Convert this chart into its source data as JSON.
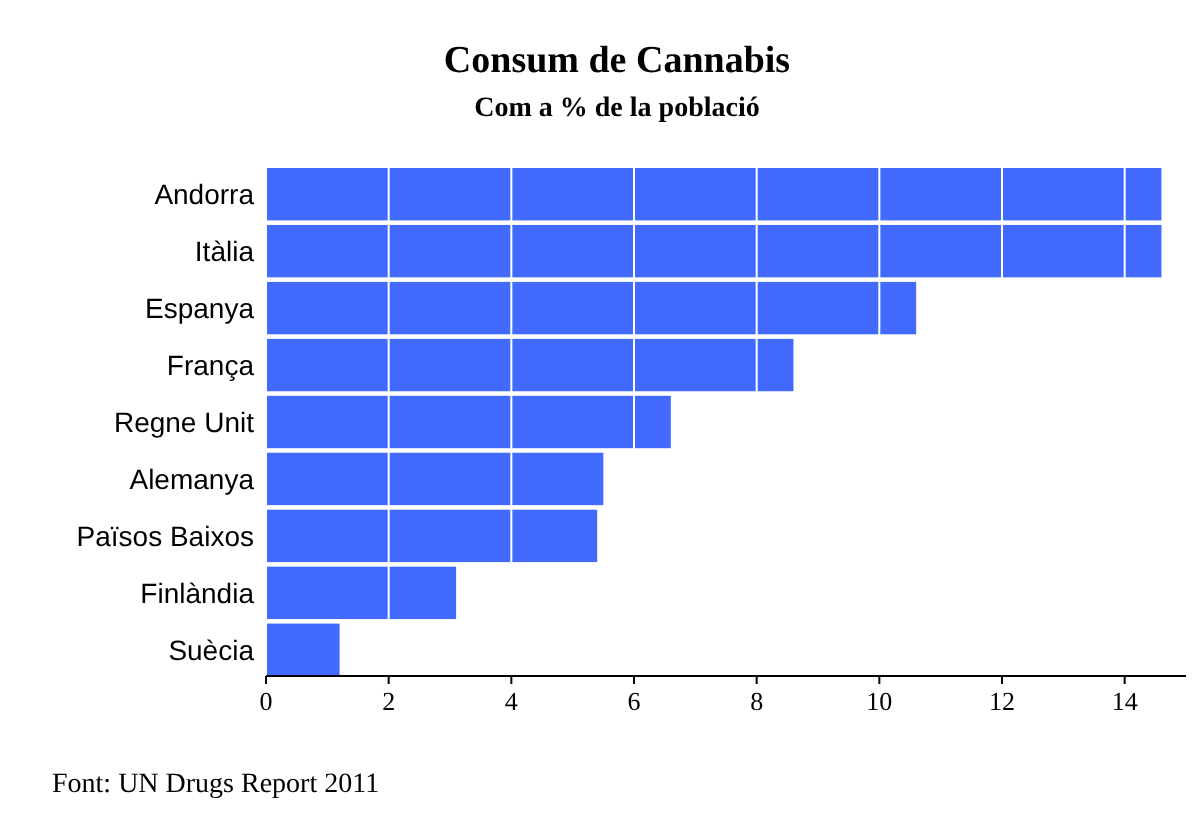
{
  "chart_data": {
    "type": "bar",
    "orientation": "horizontal",
    "title": "Consum de Cannabis",
    "subtitle": "Com a % de la població",
    "categories": [
      "Andorra",
      "Itàlia",
      "Espanya",
      "França",
      "Regne Unit",
      "Alemanya",
      "Països Baixos",
      "Finlàndia",
      "Suècia"
    ],
    "values": [
      14.6,
      14.6,
      10.6,
      8.6,
      6.6,
      5.5,
      5.4,
      3.1,
      1.2
    ],
    "color": "#426aff",
    "xlim": [
      0,
      15
    ],
    "xticks": [
      0,
      2,
      4,
      6,
      8,
      10,
      12,
      14
    ],
    "grid": "x",
    "annotations": [
      "Font: UN Drugs Report 2011"
    ]
  }
}
